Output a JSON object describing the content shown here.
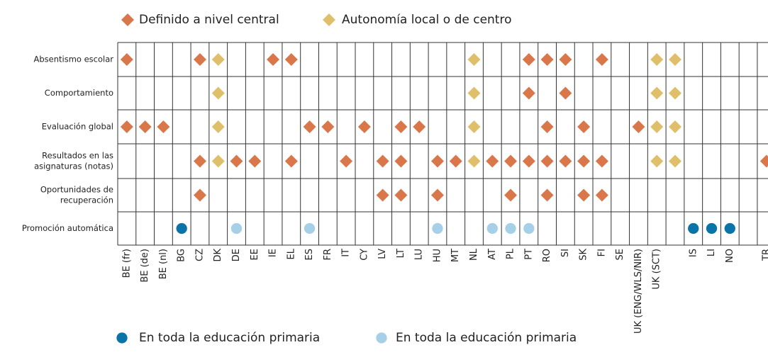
{
  "legend": [
    {
      "name": "Definido a nivel central",
      "color": "#d9764a",
      "marker": "diamond"
    },
    {
      "name": "Autonomía local o de centro",
      "color": "#dfbf6a",
      "marker": "diamond"
    },
    {
      "name": "En toda la educación primaria",
      "color": "#0a74a8",
      "marker": "circle"
    },
    {
      "name": "En toda la educación primaria",
      "color": "#a6d0e8",
      "marker": "circle"
    }
  ],
  "columns": [
    "BE (fr)",
    "BE (de)",
    "BE (nl)",
    "BG",
    "CZ",
    "DK",
    "DE",
    "EE",
    "IE",
    "EL",
    "ES",
    "FR",
    "IT",
    "CY",
    "LV",
    "LT",
    "LU",
    "HU",
    "MT",
    "NL",
    "AT",
    "PL",
    "PT",
    "RO",
    "SI",
    "SK",
    "FI",
    "SE",
    "UK (ENG/WLS/NIR)",
    "UK (SCT)",
    null,
    "IS",
    "LI",
    "NO",
    null,
    "TR"
  ],
  "rows": [
    {
      "label": [
        "Absentismo escolar"
      ],
      "cells": [
        "#d9764a",
        null,
        null,
        null,
        "#d9764a",
        "#dfbf6a",
        null,
        null,
        "#d9764a",
        "#d9764a",
        null,
        null,
        null,
        null,
        null,
        null,
        null,
        null,
        null,
        "#dfbf6a",
        null,
        null,
        "#d9764a",
        "#d9764a",
        "#d9764a",
        null,
        "#d9764a",
        null,
        null,
        "#dfbf6a",
        "#dfbf6a",
        null,
        null,
        null,
        null,
        null
      ]
    },
    {
      "label": [
        "Comportamiento"
      ],
      "cells": [
        null,
        null,
        null,
        null,
        null,
        "#dfbf6a",
        null,
        null,
        null,
        null,
        null,
        null,
        null,
        null,
        null,
        null,
        null,
        null,
        null,
        "#dfbf6a",
        null,
        null,
        "#d9764a",
        null,
        "#d9764a",
        null,
        null,
        null,
        null,
        "#dfbf6a",
        "#dfbf6a",
        null,
        null,
        null,
        null,
        null
      ]
    },
    {
      "label": [
        "Evaluación global"
      ],
      "cells": [
        "#d9764a",
        "#d9764a",
        "#d9764a",
        null,
        null,
        "#dfbf6a",
        null,
        null,
        null,
        null,
        "#d9764a",
        "#d9764a",
        null,
        "#d9764a",
        null,
        "#d9764a",
        "#d9764a",
        null,
        null,
        "#dfbf6a",
        null,
        null,
        null,
        "#d9764a",
        null,
        "#d9764a",
        null,
        null,
        "#d9764a",
        "#dfbf6a",
        "#dfbf6a",
        null,
        null,
        null,
        null,
        null
      ]
    },
    {
      "label": [
        "Resultados en las",
        "asignaturas (notas)"
      ],
      "cells": [
        null,
        null,
        null,
        null,
        "#d9764a",
        "#dfbf6a",
        "#d9764a",
        "#d9764a",
        null,
        "#d9764a",
        null,
        null,
        "#d9764a",
        null,
        "#d9764a",
        "#d9764a",
        null,
        "#d9764a",
        "#d9764a",
        "#dfbf6a",
        "#d9764a",
        "#d9764a",
        "#d9764a",
        "#d9764a",
        "#d9764a",
        "#d9764a",
        "#d9764a",
        null,
        null,
        "#dfbf6a",
        "#dfbf6a",
        null,
        null,
        null,
        null,
        "#d9764a"
      ]
    },
    {
      "label": [
        "Oportunidades de",
        "recuperación"
      ],
      "cells": [
        null,
        null,
        null,
        null,
        "#d9764a",
        null,
        null,
        null,
        null,
        null,
        null,
        null,
        null,
        null,
        "#d9764a",
        "#d9764a",
        null,
        "#d9764a",
        null,
        null,
        null,
        "#d9764a",
        null,
        "#d9764a",
        null,
        "#d9764a",
        "#d9764a",
        null,
        null,
        null,
        null,
        null,
        null,
        null,
        null,
        null
      ]
    },
    {
      "label": [
        "Promoción automática"
      ],
      "cells": [
        null,
        null,
        null,
        "#0a74a8",
        null,
        null,
        "#a6d0e8",
        null,
        null,
        null,
        "#a6d0e8",
        null,
        null,
        null,
        null,
        null,
        null,
        "#a6d0e8",
        null,
        null,
        "#a6d0e8",
        "#a6d0e8",
        "#a6d0e8",
        null,
        null,
        null,
        null,
        null,
        null,
        null,
        null,
        "#0a74a8",
        "#0a74a8",
        "#0a74a8",
        null,
        null
      ]
    }
  ]
}
